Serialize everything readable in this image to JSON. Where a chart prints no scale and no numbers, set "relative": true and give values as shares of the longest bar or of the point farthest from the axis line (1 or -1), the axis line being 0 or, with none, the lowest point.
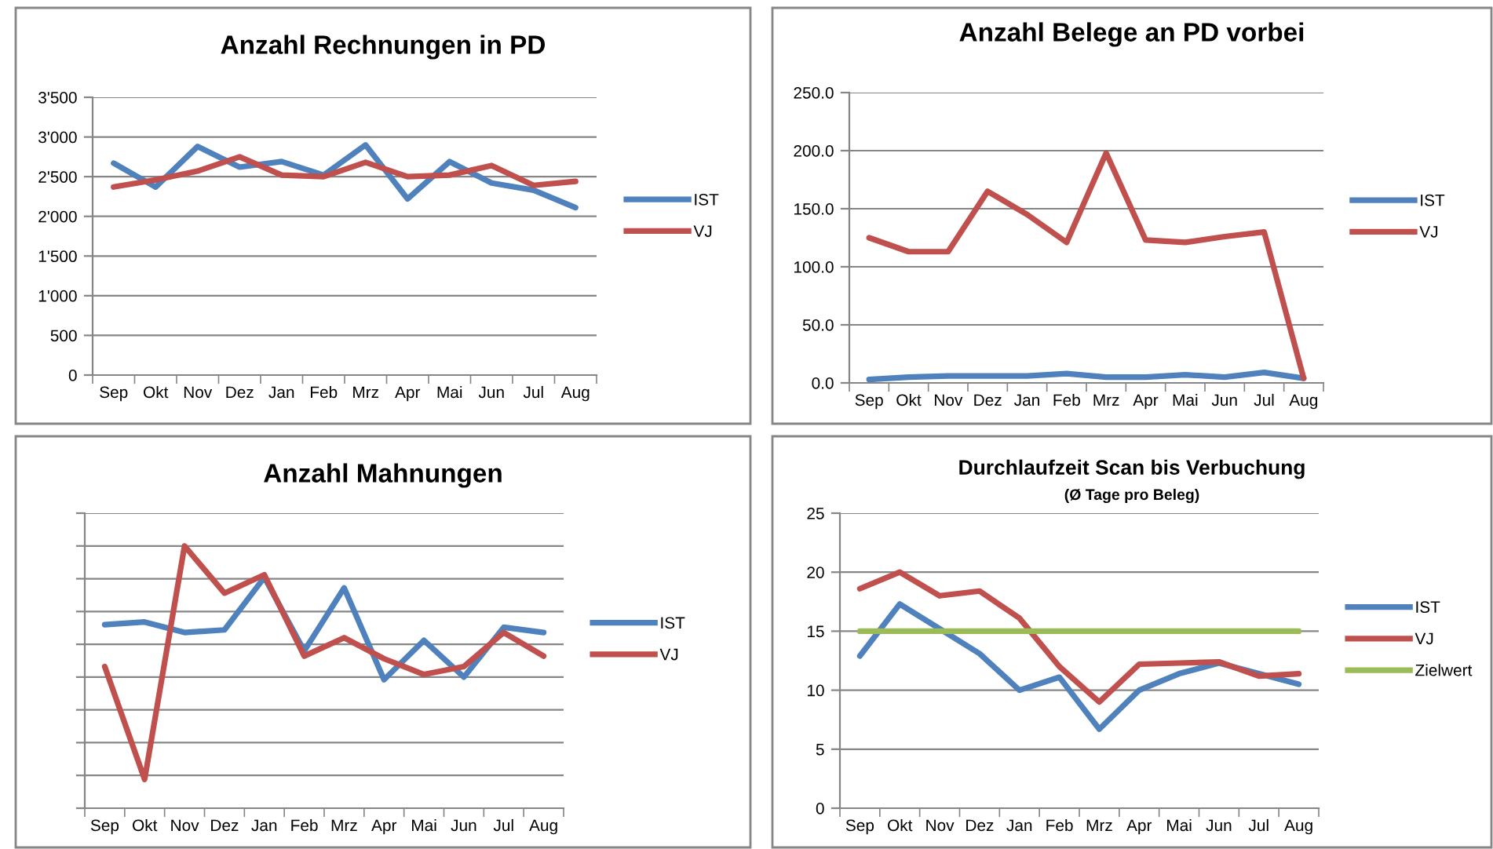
{
  "chart_data": [
    {
      "type": "line",
      "title": "Anzahl Rechnungen in PD",
      "categories": [
        "Sep",
        "Okt",
        "Nov",
        "Dez",
        "Jan",
        "Feb",
        "Mrz",
        "Apr",
        "Mai",
        "Jun",
        "Jul",
        "Aug"
      ],
      "series": [
        {
          "name": "IST",
          "color": "#4f81bd",
          "values": [
            2670,
            2370,
            2880,
            2620,
            2690,
            2520,
            2900,
            2220,
            2690,
            2420,
            2330,
            2110
          ]
        },
        {
          "name": "VJ",
          "color": "#c0504d",
          "values": [
            2370,
            2460,
            2570,
            2750,
            2520,
            2500,
            2680,
            2500,
            2520,
            2640,
            2390,
            2440
          ]
        }
      ],
      "ylim": [
        0,
        3500
      ],
      "yticks": [
        0,
        500,
        {
          "value": 1000,
          "label": "1'000"
        },
        {
          "value": 1500,
          "label": "1'500"
        },
        {
          "value": 2000,
          "label": "2'000"
        },
        {
          "value": 2500,
          "label": "2'500"
        },
        {
          "value": 3000,
          "label": "3'000"
        },
        {
          "value": 3500,
          "label": "3'500"
        }
      ],
      "grid": "y",
      "legend": "right"
    },
    {
      "type": "line",
      "title": "Anzahl Belege an PD vorbei",
      "categories": [
        "Sep",
        "Okt",
        "Nov",
        "Dez",
        "Jan",
        "Feb",
        "Mrz",
        "Apr",
        "Mai",
        "Jun",
        "Jul",
        "Aug"
      ],
      "series": [
        {
          "name": "IST",
          "color": "#4f81bd",
          "values": [
            3,
            5,
            6,
            6,
            6,
            8,
            5,
            5,
            7,
            5,
            9,
            4
          ]
        },
        {
          "name": "VJ",
          "color": "#c0504d",
          "values": [
            125,
            113,
            113,
            165,
            145,
            121,
            198,
            123,
            121,
            126,
            130,
            4
          ]
        }
      ],
      "ylim": [
        0,
        250
      ],
      "yticks": [
        {
          "value": 0,
          "label": "0.0"
        },
        {
          "value": 50,
          "label": "50.0"
        },
        {
          "value": 100,
          "label": "100.0"
        },
        {
          "value": 150,
          "label": "150.0"
        },
        {
          "value": 200,
          "label": "200.0"
        },
        {
          "value": 250,
          "label": "250.0"
        }
      ],
      "grid": "y",
      "legend": "right"
    },
    {
      "type": "line",
      "title": "Anzahl Mahnungen",
      "categories": [
        "Sep",
        "Okt",
        "Nov",
        "Dez",
        "Jan",
        "Feb",
        "Mrz",
        "Apr",
        "Mai",
        "Jun",
        "Jul",
        "Aug"
      ],
      "relative": true,
      "series": [
        {
          "name": "IST",
          "color": "#4f81bd",
          "values": [
            0.7,
            0.71,
            0.67,
            0.68,
            0.88,
            0.6,
            0.84,
            0.49,
            0.64,
            0.5,
            0.69,
            0.67
          ]
        },
        {
          "name": "VJ",
          "color": "#c0504d",
          "values": [
            0.54,
            0.11,
            1.0,
            0.82,
            0.89,
            0.58,
            0.65,
            0.57,
            0.51,
            0.54,
            0.67,
            0.58
          ]
        }
      ],
      "grid": "y",
      "legend": "right",
      "tick_labels": "x"
    },
    {
      "type": "line",
      "title": "Durchlaufzeit Scan bis Verbuchung",
      "subtitle": "(Ø Tage pro Beleg)",
      "categories": [
        "Sep",
        "Okt",
        "Nov",
        "Dez",
        "Jan",
        "Feb",
        "Mrz",
        "Apr",
        "Mai",
        "Jun",
        "Jul",
        "Aug"
      ],
      "series": [
        {
          "name": "IST",
          "color": "#4f81bd",
          "values": [
            12.9,
            17.3,
            15.2,
            13.1,
            10.0,
            11.1,
            6.7,
            10.0,
            11.4,
            12.3,
            11.4,
            10.5
          ]
        },
        {
          "name": "VJ",
          "color": "#c0504d",
          "values": [
            18.6,
            20.0,
            18.0,
            18.4,
            16.1,
            12.0,
            9.0,
            12.2,
            12.3,
            12.4,
            11.2,
            11.4
          ]
        },
        {
          "name": "Zielwert",
          "color": "#9bbb59",
          "values": [
            15,
            15,
            15,
            15,
            15,
            15,
            15,
            15,
            15,
            15,
            15,
            15
          ]
        }
      ],
      "ylim": [
        0,
        25
      ],
      "yticks": [
        0,
        5,
        10,
        15,
        20,
        25
      ],
      "grid": "y",
      "legend": "right"
    }
  ]
}
